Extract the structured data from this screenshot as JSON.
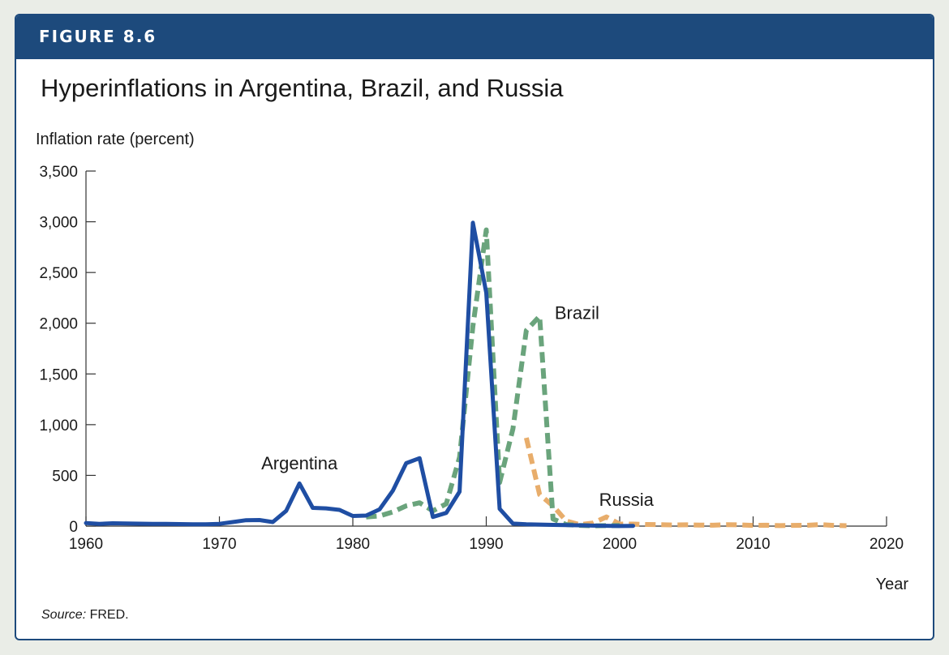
{
  "figure": {
    "label": "FIGURE 8.6",
    "title": "Hyperinflations in Argentina, Brazil, and Russia",
    "source_prefix": "Source:",
    "source_text": " FRED."
  },
  "chart_data": {
    "type": "line",
    "ylabel": "Inflation rate (percent)",
    "xlabel": "Year",
    "xlim": [
      1960,
      2020
    ],
    "ylim": [
      0,
      3500
    ],
    "xticks": [
      1960,
      1970,
      1980,
      1990,
      2000,
      2010,
      2020
    ],
    "yticks": [
      0,
      500,
      1000,
      1500,
      2000,
      2500,
      3000,
      3500
    ],
    "xtick_labels": [
      "1960",
      "1970",
      "1980",
      "1990",
      "2000",
      "2010",
      "2020"
    ],
    "ytick_labels": [
      "0",
      "500",
      "1,000",
      "1,500",
      "2,000",
      "2,500",
      "3,000",
      "3,500"
    ],
    "grid": false,
    "series": [
      {
        "name": "Argentina",
        "color": "#1f4ea3",
        "style": "solid",
        "label_anchor": [
          1976,
          560
        ],
        "x": [
          1960,
          1961,
          1962,
          1963,
          1964,
          1965,
          1966,
          1967,
          1968,
          1969,
          1970,
          1971,
          1972,
          1973,
          1974,
          1975,
          1976,
          1977,
          1978,
          1979,
          1980,
          1981,
          1982,
          1983,
          1984,
          1985,
          1986,
          1987,
          1988,
          1989,
          1990,
          1991,
          1992,
          1993,
          1994,
          1995,
          1996,
          1997,
          1998,
          1999,
          2000,
          2001
        ],
        "y": [
          30,
          22,
          28,
          26,
          24,
          22,
          22,
          20,
          18,
          18,
          22,
          40,
          58,
          60,
          40,
          150,
          420,
          180,
          175,
          160,
          100,
          104,
          165,
          350,
          620,
          670,
          90,
          130,
          340,
          2990,
          2300,
          170,
          25,
          18,
          15,
          12,
          10,
          8,
          5,
          3,
          1,
          2
        ]
      },
      {
        "name": "Brazil",
        "color": "#6aa47c",
        "style": "dashed",
        "label_anchor": [
          1996.8,
          2040
        ],
        "x": [
          1981,
          1982,
          1983,
          1984,
          1985,
          1986,
          1987,
          1988,
          1989,
          1990,
          1991,
          1992,
          1993,
          1994,
          1995,
          1996,
          1997,
          1998,
          1999,
          2000
        ],
        "y": [
          90,
          100,
          140,
          200,
          230,
          150,
          220,
          680,
          1970,
          2920,
          430,
          960,
          1930,
          2070,
          70,
          15,
          7,
          3,
          5,
          6
        ]
      },
      {
        "name": "Russia",
        "color": "#e8ad6b",
        "style": "dashed",
        "label_anchor": [
          2000.5,
          200
        ],
        "x": [
          1993,
          1994,
          1995,
          1996,
          1997,
          1998,
          1999,
          2000,
          2001,
          2002,
          2003,
          2004,
          2005,
          2006,
          2007,
          2008,
          2009,
          2010,
          2011,
          2012,
          2013,
          2014,
          2015,
          2016,
          2017
        ],
        "y": [
          870,
          310,
          200,
          50,
          15,
          30,
          90,
          20,
          20,
          16,
          14,
          11,
          13,
          10,
          9,
          14,
          12,
          7,
          9,
          5,
          7,
          8,
          15,
          7,
          4
        ]
      }
    ]
  }
}
